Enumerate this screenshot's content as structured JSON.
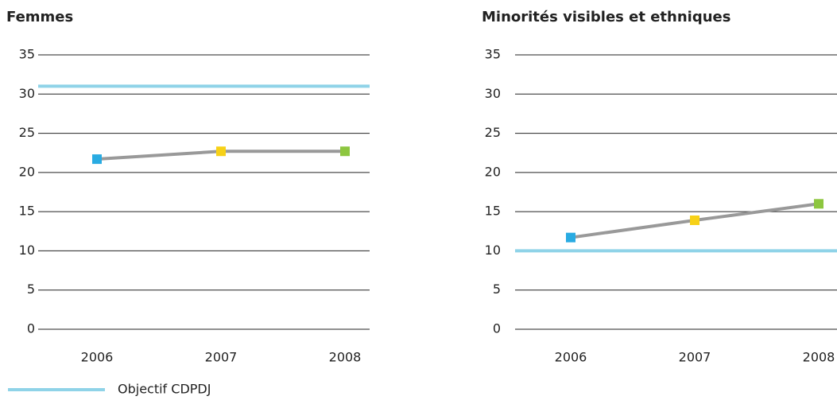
{
  "chart_data": [
    {
      "type": "line",
      "title": "Femmes",
      "categories": [
        "2006",
        "2007",
        "2008"
      ],
      "series": [
        {
          "color": "#999999",
          "point_colors": [
            "#29abe2",
            "#f7d117",
            "#8dc63f"
          ],
          "values": [
            21.7,
            22.7,
            22.7
          ]
        }
      ],
      "target": {
        "name": "Objectif CDPDJ",
        "value": 31,
        "color": "#8fd3e8"
      },
      "ylim": [
        0,
        35
      ],
      "yticks": [
        0,
        5,
        10,
        15,
        20,
        25,
        30,
        35
      ],
      "grid": true
    },
    {
      "type": "line",
      "title": "Minorités visibles et ethniques",
      "categories": [
        "2006",
        "2007",
        "2008"
      ],
      "series": [
        {
          "color": "#999999",
          "point_colors": [
            "#29abe2",
            "#f7d117",
            "#8dc63f"
          ],
          "values": [
            11.7,
            13.9,
            16
          ]
        }
      ],
      "target": {
        "value": 10,
        "color": "#8fd3e8"
      },
      "ylim": [
        0,
        35
      ],
      "yticks": [
        0,
        5,
        10,
        15,
        20,
        25,
        30,
        35
      ],
      "grid": true
    }
  ]
}
